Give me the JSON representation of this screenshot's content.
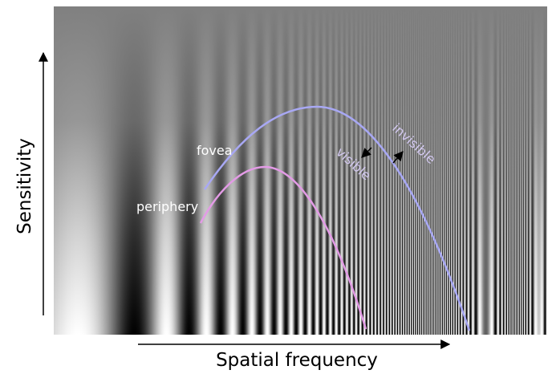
{
  "figure": {
    "x_axis_label": "Spatial frequency",
    "y_axis_label": "Sensitivity",
    "background_gray": "#808080",
    "curves": {
      "fovea": {
        "label": "fovea",
        "color": "#a8a8f4"
      },
      "periphery": {
        "label": "periphery",
        "color": "#e39be6"
      }
    },
    "regions": {
      "below_curve": "visible",
      "above_curve": "invisible",
      "text_color": "#d2c8ef"
    }
  }
}
